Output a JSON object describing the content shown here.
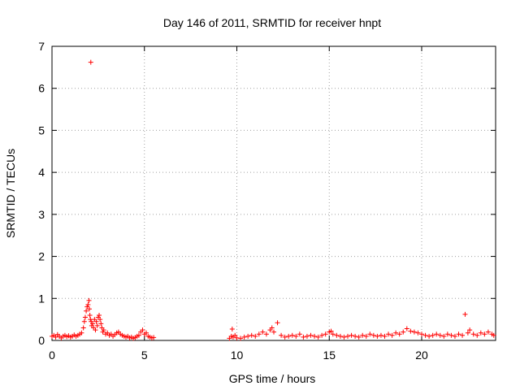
{
  "chart_data": {
    "type": "scatter",
    "title": "Day 146 of 2011, SRMTID for receiver hnpt",
    "xlabel": "GPS time / hours",
    "ylabel": "SRMTID / TECUs",
    "xlim": [
      0,
      24
    ],
    "ylim": [
      0,
      7
    ],
    "xticks": [
      0,
      5,
      10,
      15,
      20
    ],
    "yticks": [
      0,
      1,
      2,
      3,
      4,
      5,
      6,
      7
    ],
    "grid": true,
    "marker": "+",
    "color": "#ff0000",
    "series": [
      {
        "points": [
          [
            0.0,
            0.1
          ],
          [
            0.1,
            0.12
          ],
          [
            0.2,
            0.08
          ],
          [
            0.3,
            0.14
          ],
          [
            0.4,
            0.1
          ],
          [
            0.5,
            0.06
          ],
          [
            0.6,
            0.1
          ],
          [
            0.7,
            0.12
          ],
          [
            0.8,
            0.09
          ],
          [
            0.9,
            0.11
          ],
          [
            1.0,
            0.08
          ],
          [
            1.1,
            0.1
          ],
          [
            1.2,
            0.13
          ],
          [
            1.3,
            0.1
          ],
          [
            1.4,
            0.12
          ],
          [
            1.5,
            0.15
          ],
          [
            1.6,
            0.18
          ],
          [
            1.7,
            0.3
          ],
          [
            1.75,
            0.45
          ],
          [
            1.8,
            0.55
          ],
          [
            1.85,
            0.7
          ],
          [
            1.9,
            0.8
          ],
          [
            1.95,
            0.85
          ],
          [
            2.0,
            0.95
          ],
          [
            2.02,
            0.75
          ],
          [
            2.05,
            0.6
          ],
          [
            2.08,
            0.5
          ],
          [
            2.1,
            6.62
          ],
          [
            2.12,
            0.45
          ],
          [
            2.15,
            0.35
          ],
          [
            2.2,
            0.4
          ],
          [
            2.25,
            0.3
          ],
          [
            2.3,
            0.5
          ],
          [
            2.35,
            0.25
          ],
          [
            2.4,
            0.45
          ],
          [
            2.45,
            0.35
          ],
          [
            2.5,
            0.55
          ],
          [
            2.55,
            0.6
          ],
          [
            2.6,
            0.5
          ],
          [
            2.65,
            0.4
          ],
          [
            2.7,
            0.3
          ],
          [
            2.75,
            0.2
          ],
          [
            2.8,
            0.25
          ],
          [
            2.9,
            0.15
          ],
          [
            3.0,
            0.18
          ],
          [
            3.1,
            0.12
          ],
          [
            3.2,
            0.15
          ],
          [
            3.3,
            0.1
          ],
          [
            3.4,
            0.14
          ],
          [
            3.5,
            0.18
          ],
          [
            3.6,
            0.2
          ],
          [
            3.7,
            0.15
          ],
          [
            3.8,
            0.12
          ],
          [
            3.9,
            0.1
          ],
          [
            4.0,
            0.08
          ],
          [
            4.1,
            0.1
          ],
          [
            4.2,
            0.06
          ],
          [
            4.3,
            0.08
          ],
          [
            4.4,
            0.05
          ],
          [
            4.5,
            0.07
          ],
          [
            4.6,
            0.1
          ],
          [
            4.7,
            0.12
          ],
          [
            4.8,
            0.2
          ],
          [
            4.9,
            0.25
          ],
          [
            5.0,
            0.15
          ],
          [
            5.1,
            0.18
          ],
          [
            5.2,
            0.1
          ],
          [
            5.3,
            0.08
          ],
          [
            5.4,
            0.06
          ],
          [
            5.5,
            0.07
          ],
          [
            9.6,
            0.05
          ],
          [
            9.7,
            0.1
          ],
          [
            9.75,
            0.27
          ],
          [
            9.8,
            0.08
          ],
          [
            9.9,
            0.12
          ],
          [
            10.0,
            0.06
          ],
          [
            10.2,
            0.05
          ],
          [
            10.4,
            0.08
          ],
          [
            10.6,
            0.1
          ],
          [
            10.8,
            0.12
          ],
          [
            11.0,
            0.1
          ],
          [
            11.2,
            0.15
          ],
          [
            11.4,
            0.2
          ],
          [
            11.6,
            0.15
          ],
          [
            11.8,
            0.25
          ],
          [
            11.9,
            0.3
          ],
          [
            12.0,
            0.2
          ],
          [
            12.2,
            0.42
          ],
          [
            12.4,
            0.12
          ],
          [
            12.6,
            0.08
          ],
          [
            12.8,
            0.1
          ],
          [
            13.0,
            0.12
          ],
          [
            13.2,
            0.1
          ],
          [
            13.4,
            0.15
          ],
          [
            13.6,
            0.08
          ],
          [
            13.8,
            0.1
          ],
          [
            14.0,
            0.12
          ],
          [
            14.2,
            0.1
          ],
          [
            14.4,
            0.08
          ],
          [
            14.6,
            0.12
          ],
          [
            14.8,
            0.15
          ],
          [
            15.0,
            0.2
          ],
          [
            15.1,
            0.22
          ],
          [
            15.2,
            0.15
          ],
          [
            15.4,
            0.12
          ],
          [
            15.6,
            0.1
          ],
          [
            15.8,
            0.08
          ],
          [
            16.0,
            0.1
          ],
          [
            16.2,
            0.12
          ],
          [
            16.4,
            0.1
          ],
          [
            16.6,
            0.08
          ],
          [
            16.8,
            0.12
          ],
          [
            17.0,
            0.1
          ],
          [
            17.2,
            0.15
          ],
          [
            17.4,
            0.12
          ],
          [
            17.6,
            0.1
          ],
          [
            17.8,
            0.12
          ],
          [
            18.0,
            0.1
          ],
          [
            18.2,
            0.15
          ],
          [
            18.4,
            0.12
          ],
          [
            18.6,
            0.18
          ],
          [
            18.8,
            0.15
          ],
          [
            19.0,
            0.2
          ],
          [
            19.2,
            0.28
          ],
          [
            19.4,
            0.22
          ],
          [
            19.6,
            0.2
          ],
          [
            19.8,
            0.18
          ],
          [
            20.0,
            0.15
          ],
          [
            20.2,
            0.12
          ],
          [
            20.4,
            0.1
          ],
          [
            20.6,
            0.12
          ],
          [
            20.8,
            0.15
          ],
          [
            21.0,
            0.12
          ],
          [
            21.2,
            0.1
          ],
          [
            21.4,
            0.15
          ],
          [
            21.6,
            0.12
          ],
          [
            21.8,
            0.1
          ],
          [
            22.0,
            0.15
          ],
          [
            22.2,
            0.12
          ],
          [
            22.35,
            0.62
          ],
          [
            22.5,
            0.18
          ],
          [
            22.6,
            0.25
          ],
          [
            22.8,
            0.15
          ],
          [
            23.0,
            0.12
          ],
          [
            23.2,
            0.18
          ],
          [
            23.4,
            0.15
          ],
          [
            23.6,
            0.2
          ],
          [
            23.8,
            0.15
          ],
          [
            23.9,
            0.12
          ]
        ]
      }
    ]
  }
}
